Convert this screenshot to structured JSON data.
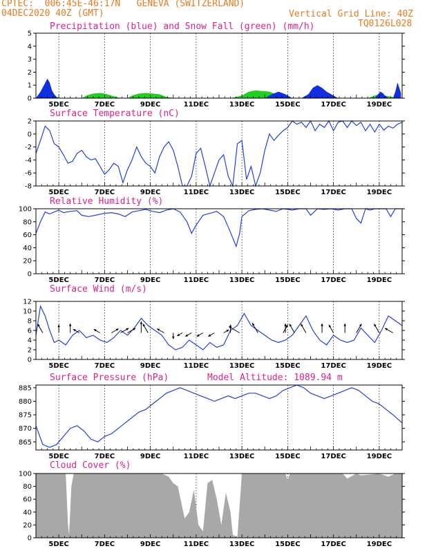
{
  "header": {
    "line1": "CPTEC:  006:45E-46:17N   GENEVA (SWITZERLAND)",
    "line2": "04DEC2020 40Z (GMT)",
    "grid_note": "Vertical Grid Line: 40Z",
    "code": "TQ0126L028"
  },
  "colors": {
    "header": "#e87a1e",
    "titles": "#e0208a",
    "precip": "#1030e0",
    "snow": "#20d020",
    "line": "#2040e0",
    "cloud": "#a8a8a8",
    "axis": "#000000"
  },
  "chart_data": [
    {
      "type": "area",
      "title": "Precipitation (blue) and Snow Fall (green) (mm/h)",
      "x_ticks": [
        "5DEC",
        "7DEC",
        "9DEC",
        "11DEC",
        "13DEC",
        "15DEC",
        "17DEC",
        "19DEC"
      ],
      "ylim": [
        0,
        5
      ],
      "y_ticks": [
        0,
        1,
        2,
        3,
        4,
        5
      ],
      "series": [
        {
          "name": "Precipitation",
          "x": [
            4.0,
            4.2,
            4.35,
            4.5,
            4.6,
            4.7,
            4.8,
            4.95,
            5.1,
            6.5,
            13.0,
            13.5,
            14.0,
            14.3,
            14.6,
            14.9,
            15.2,
            15.6,
            15.9,
            16.1,
            16.3,
            16.5,
            16.7,
            16.9,
            17.2,
            18.8,
            18.95,
            19.05,
            19.15,
            19.25,
            19.4,
            19.6,
            19.7,
            19.8,
            19.95
          ],
          "values": [
            0,
            0.5,
            1.0,
            1.5,
            1.2,
            0.6,
            0.3,
            0,
            0,
            0,
            0,
            0,
            0,
            0.3,
            0.5,
            0.3,
            0,
            0,
            0.3,
            0.8,
            1.0,
            0.8,
            0.5,
            0.3,
            0,
            0,
            0.3,
            0.5,
            0.4,
            0.2,
            0,
            0,
            0.5,
            1.2,
            0.4
          ]
        },
        {
          "name": "Snow Fall",
          "x": [
            4.0,
            4.2,
            4.35,
            4.5,
            4.6,
            4.75,
            4.9,
            5.1,
            5.3,
            6.0,
            6.2,
            6.5,
            6.8,
            7.0,
            7.3,
            7.5,
            7.7,
            8.0,
            8.2,
            8.5,
            8.8,
            9.1,
            9.4,
            9.7,
            9.9,
            10.1,
            12.5,
            13.0,
            13.3,
            13.6,
            13.9,
            14.2,
            14.5,
            14.8,
            14.9,
            15.3,
            18.5,
            18.8,
            19.0,
            19.4,
            19.9
          ],
          "values": [
            0,
            0.3,
            0.6,
            1.0,
            0.6,
            0.3,
            0.1,
            0,
            0,
            0,
            0.2,
            0.35,
            0.4,
            0.35,
            0.2,
            0.1,
            0,
            0,
            0.2,
            0.35,
            0.4,
            0.35,
            0.3,
            0.1,
            0.05,
            0,
            0,
            0.2,
            0.5,
            0.6,
            0.55,
            0.5,
            0.3,
            0.1,
            0,
            0,
            0,
            0.2,
            0.3,
            0.15,
            0
          ]
        }
      ]
    },
    {
      "type": "line",
      "title": "Surface Temperature (nC)",
      "x_ticks": [
        "5DEC",
        "7DEC",
        "9DEC",
        "11DEC",
        "13DEC",
        "15DEC",
        "17DEC",
        "19DEC"
      ],
      "ylim": [
        -8,
        2
      ],
      "y_ticks": [
        -8,
        -6,
        -4,
        -2,
        0,
        2
      ],
      "series": [
        {
          "name": "Temperature",
          "x": [
            4.0,
            4.2,
            4.4,
            4.6,
            4.8,
            5.0,
            5.2,
            5.4,
            5.6,
            5.8,
            6.0,
            6.2,
            6.4,
            6.6,
            6.8,
            7.0,
            7.2,
            7.4,
            7.6,
            7.8,
            8.0,
            8.2,
            8.4,
            8.6,
            8.8,
            9.0,
            9.2,
            9.4,
            9.6,
            9.8,
            10.0,
            10.2,
            10.4,
            10.6,
            10.8,
            11.0,
            11.2,
            11.4,
            11.6,
            11.8,
            12.0,
            12.2,
            12.4,
            12.6,
            12.8,
            13.0,
            13.2,
            13.4,
            13.6,
            13.8,
            14.0,
            14.2,
            14.4,
            14.6,
            14.8,
            15.0,
            15.2,
            15.4,
            15.6,
            15.8,
            16.0,
            16.2,
            16.4,
            16.6,
            16.8,
            17.0,
            17.2,
            17.4,
            17.6,
            17.8,
            18.0,
            18.2,
            18.4,
            18.6,
            18.8,
            19.0,
            19.2,
            19.4,
            19.6,
            19.8,
            20.0
          ],
          "values": [
            -3,
            -1,
            1.2,
            0.5,
            -1.5,
            -2,
            -3.2,
            -4.5,
            -4.2,
            -3,
            -2.5,
            -3.5,
            -4,
            -3.8,
            -5,
            -6.2,
            -5.5,
            -4.5,
            -5,
            -7.5,
            -5.5,
            -4,
            -2,
            -3.5,
            -4.5,
            -5,
            -6,
            -3.5,
            -2,
            -1.2,
            -2.5,
            -5,
            -8,
            -8,
            -6.5,
            -3,
            -2.2,
            -5,
            -8,
            -6,
            -4,
            -3.2,
            -6.5,
            -8,
            -1.5,
            -1,
            -7,
            -5,
            -8,
            -6,
            -2.5,
            0,
            -1,
            -0.2,
            0.5,
            1,
            2,
            1.5,
            1.8,
            1,
            2,
            0.5,
            1.5,
            1,
            2,
            0.5,
            1.8,
            2,
            1,
            2,
            1.3,
            1.8,
            0.5,
            1.5,
            0.3,
            1.5,
            0.6,
            1.2,
            0.9,
            1.5,
            1.8
          ]
        }
      ]
    },
    {
      "type": "line",
      "title": "Relative Humidity (%)",
      "x_ticks": [
        "5DEC",
        "7DEC",
        "9DEC",
        "11DEC",
        "13DEC",
        "15DEC",
        "17DEC",
        "19DEC"
      ],
      "ylim": [
        0,
        100
      ],
      "y_ticks": [
        0,
        20,
        40,
        60,
        80,
        100
      ],
      "series": [
        {
          "name": "Humidity",
          "x": [
            4.0,
            4.2,
            4.4,
            4.6,
            4.8,
            5.0,
            5.2,
            5.5,
            5.8,
            6.0,
            6.3,
            6.6,
            7.0,
            7.3,
            7.6,
            7.9,
            8.2,
            8.5,
            8.8,
            9.1,
            9.4,
            9.7,
            10.0,
            10.3,
            10.6,
            10.8,
            11.0,
            11.3,
            11.6,
            11.9,
            12.2,
            12.4,
            12.6,
            12.75,
            12.9,
            13.0,
            13.3,
            13.6,
            13.9,
            14.2,
            14.5,
            14.8,
            15.2,
            15.5,
            15.8,
            16.0,
            16.3,
            16.6,
            16.9,
            17.2,
            17.5,
            17.8,
            18.0,
            18.2,
            18.4,
            18.6,
            18.8,
            19.0,
            19.3,
            19.5,
            19.7,
            20.0
          ],
          "values": [
            62,
            80,
            95,
            92,
            95,
            98,
            94,
            96,
            97,
            90,
            88,
            90,
            93,
            94,
            92,
            88,
            95,
            97,
            99,
            96,
            94,
            98,
            100,
            95,
            80,
            62,
            75,
            90,
            93,
            96,
            88,
            72,
            55,
            42,
            62,
            88,
            97,
            99,
            100,
            98,
            96,
            100,
            98,
            100,
            100,
            90,
            100,
            99,
            100,
            98,
            100,
            100,
            85,
            78,
            100,
            98,
            100,
            100,
            100,
            88,
            100,
            100
          ]
        }
      ]
    },
    {
      "type": "line",
      "title": "Surface Wind (m/s)",
      "x_ticks": [
        "5DEC",
        "7DEC",
        "9DEC",
        "11DEC",
        "13DEC",
        "15DEC",
        "17DEC",
        "19DEC"
      ],
      "ylim": [
        0,
        12
      ],
      "y_ticks": [
        0,
        2,
        4,
        6,
        8,
        10,
        12
      ],
      "series": [
        {
          "name": "Wind speed",
          "x": [
            4.0,
            4.2,
            4.4,
            4.6,
            4.8,
            5.0,
            5.3,
            5.6,
            5.9,
            6.2,
            6.5,
            6.8,
            7.1,
            7.4,
            7.7,
            8.0,
            8.3,
            8.6,
            8.9,
            9.2,
            9.5,
            9.8,
            10.1,
            10.4,
            10.7,
            11.0,
            11.3,
            11.6,
            11.9,
            12.2,
            12.5,
            12.8,
            13.1,
            13.4,
            13.7,
            14.0,
            14.3,
            14.6,
            14.9,
            15.2,
            15.5,
            15.8,
            16.1,
            16.4,
            16.7,
            17.0,
            17.3,
            17.6,
            17.9,
            18.2,
            18.5,
            18.8,
            19.1,
            19.4,
            19.7,
            20.0
          ],
          "values": [
            5,
            11,
            9,
            6,
            3.5,
            4,
            3,
            5,
            6,
            4.5,
            5,
            4,
            3.5,
            4.5,
            6,
            5,
            6.5,
            8.5,
            7,
            6,
            5,
            3,
            2,
            2.5,
            4,
            3,
            2,
            3.5,
            2.5,
            3,
            6,
            7,
            9.5,
            7,
            6,
            5,
            4,
            3.5,
            4,
            5,
            7,
            9,
            6,
            4,
            3,
            5,
            4,
            3.5,
            4,
            6.5,
            5,
            3.5,
            6,
            9,
            8,
            7
          ]
        }
      ],
      "arrows": [
        {
          "x": 4.3,
          "dir": 330,
          "speed": 6
        },
        {
          "x": 5.0,
          "dir": 0,
          "speed": 4
        },
        {
          "x": 5.5,
          "dir": 0,
          "speed": 5
        },
        {
          "x": 5.9,
          "dir": 300,
          "speed": 3
        },
        {
          "x": 6.8,
          "dir": 300,
          "speed": 3
        },
        {
          "x": 7.3,
          "dir": 60,
          "speed": 4
        },
        {
          "x": 7.7,
          "dir": 60,
          "speed": 5
        },
        {
          "x": 8.0,
          "dir": 60,
          "speed": 5
        },
        {
          "x": 8.6,
          "dir": 0,
          "speed": 7
        },
        {
          "x": 8.9,
          "dir": 330,
          "speed": 6
        },
        {
          "x": 9.6,
          "dir": 300,
          "speed": 4
        },
        {
          "x": 10.0,
          "dir": 180,
          "speed": 2
        },
        {
          "x": 10.4,
          "dir": 240,
          "speed": 2
        },
        {
          "x": 10.8,
          "dir": 240,
          "speed": 3
        },
        {
          "x": 11.3,
          "dir": 240,
          "speed": 3
        },
        {
          "x": 11.8,
          "dir": 240,
          "speed": 3
        },
        {
          "x": 12.2,
          "dir": 60,
          "speed": 2
        },
        {
          "x": 12.5,
          "dir": 0,
          "speed": 4
        },
        {
          "x": 12.9,
          "dir": 300,
          "speed": 8
        },
        {
          "x": 13.7,
          "dir": 330,
          "speed": 7
        },
        {
          "x": 14.8,
          "dir": 30,
          "speed": 5
        },
        {
          "x": 14.9,
          "dir": 0,
          "speed": 5
        },
        {
          "x": 15.3,
          "dir": 330,
          "speed": 6
        },
        {
          "x": 15.8,
          "dir": 330,
          "speed": 6
        },
        {
          "x": 16.5,
          "dir": 0,
          "speed": 5
        },
        {
          "x": 17.0,
          "dir": 330,
          "speed": 5
        },
        {
          "x": 17.5,
          "dir": 0,
          "speed": 5
        },
        {
          "x": 18.0,
          "dir": 30,
          "speed": 6
        },
        {
          "x": 19.0,
          "dir": 330,
          "speed": 6
        },
        {
          "x": 19.6,
          "dir": 300,
          "speed": 5
        }
      ]
    },
    {
      "type": "line",
      "title": "Surface Pressure (hPa)",
      "annotation": "Model Altitude: 1089.94 m",
      "x_ticks": [
        "5DEC",
        "7DEC",
        "9DEC",
        "11DEC",
        "13DEC",
        "15DEC",
        "17DEC",
        "19DEC"
      ],
      "ylim": [
        862,
        886
      ],
      "y_ticks": [
        865,
        870,
        875,
        880,
        885
      ],
      "series": [
        {
          "name": "Pressure",
          "x": [
            4.0,
            4.3,
            4.6,
            4.9,
            5.2,
            5.5,
            5.8,
            6.1,
            6.4,
            6.7,
            7.0,
            7.3,
            7.6,
            7.9,
            8.2,
            8.5,
            8.8,
            9.1,
            9.4,
            9.7,
            10.0,
            10.3,
            10.6,
            10.9,
            11.2,
            11.5,
            11.8,
            12.1,
            12.4,
            12.7,
            13.0,
            13.3,
            13.6,
            13.9,
            14.2,
            14.5,
            14.8,
            15.1,
            15.4,
            15.7,
            16.0,
            16.3,
            16.6,
            16.9,
            17.2,
            17.5,
            17.8,
            18.1,
            18.4,
            18.7,
            19.0,
            19.3,
            19.6,
            20.0
          ],
          "values": [
            871,
            864,
            863,
            864,
            867,
            870,
            871,
            869,
            866,
            865,
            867,
            868,
            870,
            872,
            874,
            876,
            877,
            879,
            881,
            883,
            884,
            885,
            884,
            883,
            882,
            881,
            880,
            881,
            882,
            881,
            882,
            883,
            883,
            882,
            881,
            882,
            884,
            885,
            886,
            885,
            883,
            882,
            881,
            882,
            883,
            884,
            885,
            884,
            882,
            880,
            879,
            877,
            875,
            872
          ]
        }
      ]
    },
    {
      "type": "bar",
      "title": "Cloud Cover (%)",
      "x_ticks": [
        "5DEC",
        "7DEC",
        "9DEC",
        "11DEC",
        "13DEC",
        "15DEC",
        "17DEC",
        "19DEC"
      ],
      "ylim": [
        0,
        100
      ],
      "y_ticks": [
        0,
        20,
        40,
        60,
        80,
        100
      ],
      "series": [
        {
          "name": "Cloud Cover",
          "x": [
            4.0,
            5.3,
            5.4,
            5.45,
            5.55,
            5.65,
            9.5,
            9.8,
            10.0,
            10.2,
            10.5,
            10.7,
            10.9,
            11.1,
            11.3,
            11.5,
            11.7,
            11.9,
            12.1,
            12.3,
            12.5,
            12.6,
            12.8,
            13.0,
            14.9,
            15.0,
            15.1,
            17.4,
            17.6,
            18.0,
            18.2,
            19.0,
            19.4,
            19.7,
            20.0
          ],
          "values": [
            100,
            100,
            20,
            5,
            80,
            100,
            100,
            95,
            85,
            80,
            30,
            40,
            75,
            20,
            10,
            85,
            90,
            60,
            20,
            70,
            40,
            5,
            0,
            100,
            100,
            90,
            100,
            100,
            92,
            100,
            97,
            100,
            95,
            100,
            100
          ]
        }
      ]
    }
  ]
}
